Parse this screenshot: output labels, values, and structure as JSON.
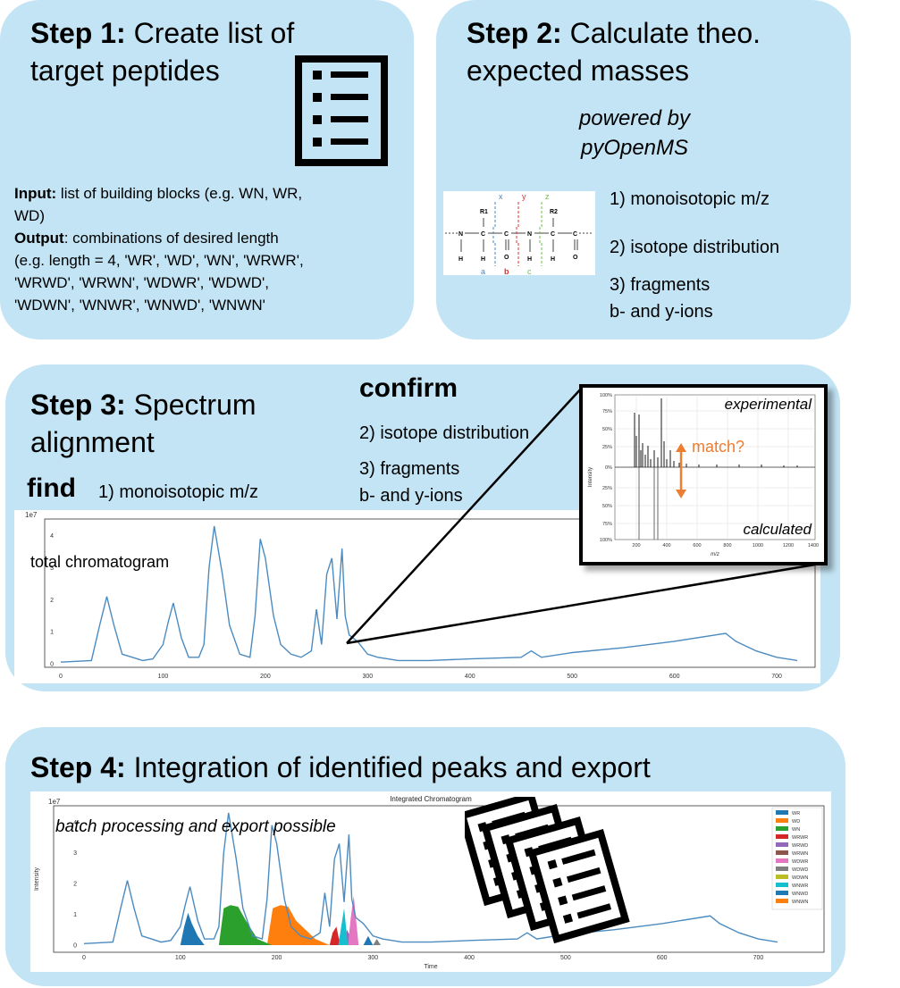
{
  "step1": {
    "title_bold": "Step 1:",
    "title_rest": "Create list of",
    "title_line2": "target peptides",
    "list_icon": "checklist-icon",
    "input_label": "Input:",
    "input_text": " list of building blocks (e.g. WN, WR,",
    "input_text2": "WD)",
    "output_label": "Output",
    "output_text": ": combinations of desired length",
    "output_lines": [
      "(e.g. length = 4, 'WR', 'WD', 'WN', 'WRWR',",
      "'WRWD', 'WRWN', 'WDWR', 'WDWD',",
      "'WDWN', 'WNWR', 'WNWD', 'WNWN'"
    ]
  },
  "step2": {
    "title_bold": "Step 2:",
    "title_rest": "Calculate theo.",
    "title_line2": "expected masses",
    "powered_line1": "powered by",
    "powered_line2": "pyOpenMS",
    "items": [
      "1) monoisotopic m/z",
      "2) isotope distribution",
      "3) fragments",
      "b- and y-ions"
    ],
    "structure": {
      "labels": [
        "R1",
        "R2",
        "N",
        "N",
        "C",
        "C",
        "C",
        "C",
        "H",
        "H",
        "H",
        "H",
        "O",
        "O"
      ],
      "ion_labels": [
        "x",
        "y",
        "z",
        "a",
        "b",
        "c"
      ]
    }
  },
  "step3": {
    "title_bold": "Step 3:",
    "title_rest": "Spectrum",
    "title_line2": "alignment",
    "confirm": "confirm",
    "confirm_items": [
      "2) isotope distribution",
      "3) fragments",
      "b- and y-ions"
    ],
    "find": "find",
    "find_item": "1) monoisotopic m/z",
    "chrom_label": "total chromatogram",
    "chrom_exp": "1e7",
    "spectrum": {
      "experimental": "experimental",
      "calculated": "calculated",
      "match": "match?",
      "xlabel": "m/z",
      "ylabel": "Intensity",
      "yticks": [
        "100%",
        "75%",
        "50%",
        "25%",
        "0%",
        "25%",
        "50%",
        "75%",
        "100%"
      ],
      "xticks": [
        "200",
        "400",
        "600",
        "800",
        "1000",
        "1200",
        "1400"
      ],
      "match_color": "#ed7d31"
    }
  },
  "step4": {
    "title_bold": "Step 4:",
    "title_rest": "Integration of identified peaks and export",
    "chart_title": "Integrated Chromatogram",
    "batch_text": "batch processing and export possible",
    "xlabel": "Time",
    "ylabel": "Intensity",
    "exp": "1e7",
    "stack_icon": "stacked-checklists-icon"
  },
  "chart_data": [
    {
      "type": "line",
      "title": "",
      "xlabel": "",
      "ylabel": "",
      "ylim": [
        0,
        4.3
      ],
      "xlim": [
        0,
        720
      ],
      "xticks": [
        "0",
        "100",
        "200",
        "300",
        "400",
        "500",
        "600",
        "700"
      ],
      "yticks": [
        "0",
        "1",
        "2",
        "3",
        "4"
      ],
      "line_color": "#4c8bc0",
      "x": [
        0,
        30,
        38,
        45,
        52,
        60,
        70,
        80,
        90,
        100,
        105,
        110,
        118,
        125,
        135,
        140,
        145,
        150,
        158,
        165,
        175,
        185,
        190,
        195,
        200,
        208,
        215,
        225,
        235,
        245,
        250,
        255,
        260,
        265,
        270,
        275,
        278,
        282,
        290,
        300,
        310,
        330,
        360,
        400,
        450,
        460,
        470,
        500,
        550,
        600,
        640,
        650,
        660,
        680,
        700,
        720
      ],
      "y": [
        0.05,
        0.1,
        1.2,
        2.1,
        1.2,
        0.3,
        0.2,
        0.1,
        0.15,
        0.6,
        1.3,
        1.9,
        0.8,
        0.2,
        0.2,
        0.6,
        3.0,
        4.3,
        2.8,
        1.2,
        0.3,
        0.2,
        1.5,
        3.9,
        3.3,
        1.5,
        0.6,
        0.3,
        0.2,
        0.4,
        1.7,
        0.6,
        2.8,
        3.3,
        1.4,
        3.6,
        1.5,
        0.9,
        0.7,
        0.3,
        0.2,
        0.1,
        0.1,
        0.15,
        0.2,
        0.4,
        0.2,
        0.35,
        0.5,
        0.7,
        0.9,
        0.95,
        0.7,
        0.4,
        0.2,
        0.1
      ]
    },
    {
      "type": "area",
      "title": "Integrated Chromatogram",
      "xlabel": "Time",
      "ylabel": "Intensity",
      "ylim": [
        0,
        4.3
      ],
      "xlim": [
        0,
        720
      ],
      "xticks": [
        "0",
        "100",
        "200",
        "300",
        "400",
        "500",
        "600",
        "700"
      ],
      "yticks": [
        "0",
        "1",
        "2",
        "3",
        "4"
      ],
      "legend_position": "top-right",
      "legend": [
        "WR",
        "WD",
        "WN",
        "WRWR",
        "WRWD",
        "WRWN",
        "WDWR",
        "WDWD",
        "WDWN",
        "WNWR",
        "WNWD",
        "WNWN"
      ],
      "legend_colors": [
        "#1f77b4",
        "#ff7f0e",
        "#2ca02c",
        "#d62728",
        "#9467bd",
        "#8c564b",
        "#e377c2",
        "#7f7f7f",
        "#bcbd22",
        "#17becf",
        "#1f77b4",
        "#ff7f0e"
      ],
      "series": [
        {
          "name": "WR",
          "color": "#1f77b4",
          "x": [
            100,
            104,
            108,
            112,
            118,
            125
          ],
          "y": [
            0,
            0.6,
            1.05,
            0.7,
            0.3,
            0
          ]
        },
        {
          "name": "WD",
          "color": "#ff7f0e",
          "x": [
            190,
            196,
            204,
            212,
            220,
            240,
            255
          ],
          "y": [
            0,
            1.2,
            1.3,
            1.25,
            0.8,
            0.2,
            0
          ]
        },
        {
          "name": "WN",
          "color": "#2ca02c",
          "x": [
            140,
            145,
            152,
            160,
            168,
            180,
            195
          ],
          "y": [
            0,
            1.2,
            1.3,
            1.25,
            0.8,
            0.2,
            0
          ]
        },
        {
          "name": "WRWR",
          "color": "#d62728",
          "x": [
            255,
            258,
            262,
            266
          ],
          "y": [
            0,
            0.4,
            0.6,
            0
          ]
        },
        {
          "name": "WRWD",
          "color": "#9467bd",
          "x": [
            270,
            273,
            276,
            280
          ],
          "y": [
            0,
            0.5,
            0.3,
            0
          ]
        },
        {
          "name": "WNWR",
          "color": "#17becf",
          "x": [
            264,
            267,
            270,
            274
          ],
          "y": [
            0,
            0.6,
            1.2,
            0
          ]
        },
        {
          "name": "WDWR",
          "color": "#e377c2",
          "x": [
            274,
            277,
            280,
            285
          ],
          "y": [
            0,
            0.9,
            1.6,
            0
          ]
        },
        {
          "name": "WNWD",
          "color": "#1f77b4",
          "x": [
            290,
            295,
            300
          ],
          "y": [
            0,
            0.3,
            0
          ]
        },
        {
          "name": "WDWD",
          "color": "#7f7f7f",
          "x": [
            300,
            304,
            308
          ],
          "y": [
            0,
            0.2,
            0
          ]
        }
      ]
    }
  ]
}
